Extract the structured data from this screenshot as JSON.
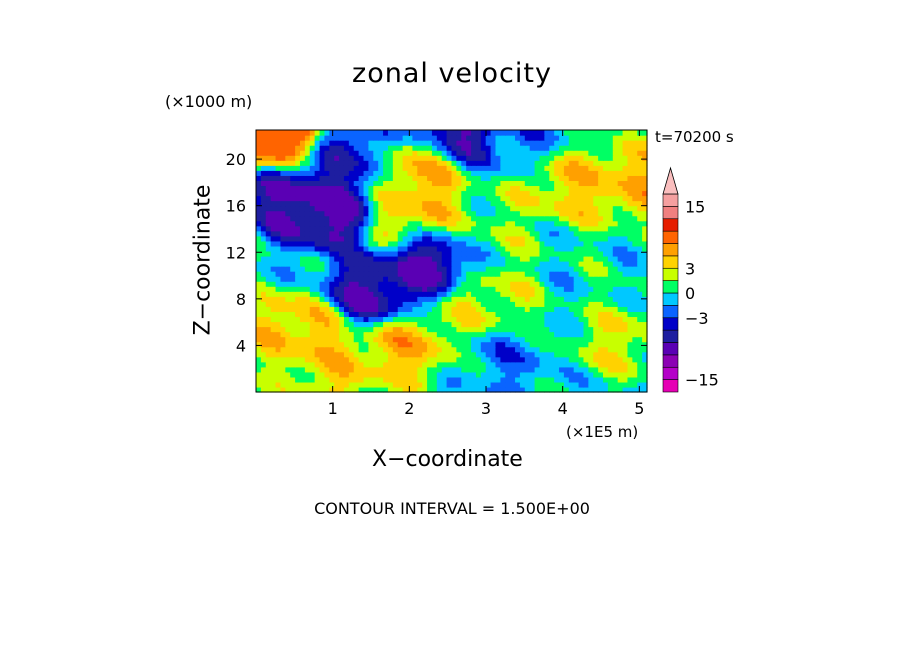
{
  "chart_data": {
    "type": "heatmap",
    "title": "zonal velocity",
    "xlabel": "X−coordinate",
    "ylabel": "Z−coordinate",
    "x_unit": "(×1E5 m)",
    "y_unit": "(×1000 m)",
    "time_label": "t=70200 s",
    "footer": "CONTOUR INTERVAL = 1.500E+00",
    "xlim": [
      0,
      5.1
    ],
    "ylim": [
      0,
      22.5
    ],
    "x_ticks": [
      {
        "value": 1,
        "label": "1"
      },
      {
        "value": 2,
        "label": "2"
      },
      {
        "value": 3,
        "label": "3"
      },
      {
        "value": 4,
        "label": "4"
      },
      {
        "value": 5,
        "label": "5"
      }
    ],
    "y_ticks": [
      {
        "value": 4,
        "label": "4"
      },
      {
        "value": 8,
        "label": "8"
      },
      {
        "value": 12,
        "label": "12"
      },
      {
        "value": 16,
        "label": "16"
      },
      {
        "value": 20,
        "label": "20"
      }
    ],
    "colorbar": {
      "levels": [
        {
          "value": -18,
          "color": "#e600b4"
        },
        {
          "value": -15,
          "color": "#b400c8"
        },
        {
          "value": -12,
          "color": "#8c00b4"
        },
        {
          "value": -9,
          "color": "#5a00b4"
        },
        {
          "value": -6,
          "color": "#1e1ea0"
        },
        {
          "value": -4.5,
          "color": "#0000c8"
        },
        {
          "value": -3,
          "color": "#0a64ff"
        },
        {
          "value": -1.5,
          "color": "#00c8ff"
        },
        {
          "value": 0,
          "color": "#00ff64"
        },
        {
          "value": 1.5,
          "color": "#c8ff00"
        },
        {
          "value": 3,
          "color": "#ffd200"
        },
        {
          "value": 4.5,
          "color": "#ffa000"
        },
        {
          "value": 6,
          "color": "#ff6400"
        },
        {
          "value": 9,
          "color": "#e61e00"
        },
        {
          "value": 12,
          "color": "#f08080"
        },
        {
          "value": 15,
          "color": "#f5a0a0"
        },
        {
          "value": 18,
          "color": "#fabebe"
        }
      ],
      "tick_labels": [
        {
          "value": 15,
          "label": "15"
        },
        {
          "value": 3,
          "label": "3"
        },
        {
          "value": 0,
          "label": "0"
        },
        {
          "value": -3,
          "label": "−3"
        },
        {
          "value": -15,
          "label": "−15"
        }
      ]
    },
    "field_seeds": [
      {
        "x": 0.5,
        "z": 17,
        "u": -7
      },
      {
        "x": 0.9,
        "z": 15.5,
        "u": -8
      },
      {
        "x": 1.2,
        "z": 20.5,
        "u": -5
      },
      {
        "x": 1.5,
        "z": 8.5,
        "u": -7
      },
      {
        "x": 2.35,
        "z": 11.5,
        "u": -9
      },
      {
        "x": 2.6,
        "z": 22,
        "u": -8
      },
      {
        "x": 2.2,
        "z": 19.5,
        "u": 6
      },
      {
        "x": 2.1,
        "z": 15,
        "u": 5
      },
      {
        "x": 0.3,
        "z": 22,
        "u": 10
      },
      {
        "x": 1.9,
        "z": 4,
        "u": 5
      },
      {
        "x": 0.6,
        "z": 5.5,
        "u": 5
      },
      {
        "x": 4.0,
        "z": 18,
        "u": 4
      },
      {
        "x": 4.8,
        "z": 18,
        "u": 5
      },
      {
        "x": 3.0,
        "z": 8,
        "u": 3
      },
      {
        "x": 3.3,
        "z": 2.5,
        "u": -2
      },
      {
        "x": 4.3,
        "z": 8,
        "u": 0
      },
      {
        "x": 4.7,
        "z": 5,
        "u": 3
      },
      {
        "x": 3.5,
        "z": 21.5,
        "u": -2
      },
      {
        "x": 2.9,
        "z": 13,
        "u": 2
      },
      {
        "x": 1.0,
        "z": 2,
        "u": 4
      }
    ]
  }
}
